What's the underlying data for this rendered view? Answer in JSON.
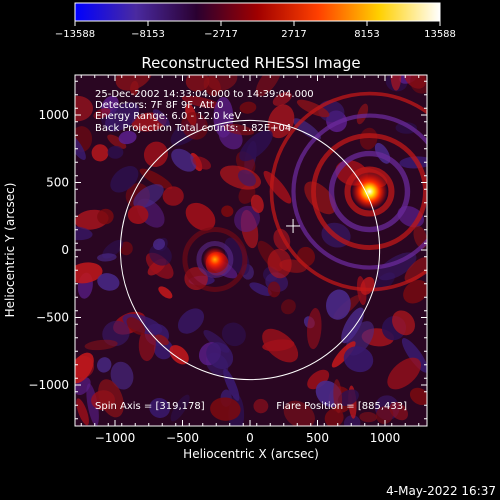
{
  "colorbar": {
    "ticks": [
      "−13588",
      "−8153",
      "−2717",
      "2717",
      "8153",
      "13588"
    ],
    "stops": [
      "#0000ff",
      "#4a2aa0",
      "#2a0030",
      "#a00000",
      "#ff4000",
      "#ffd000",
      "#ffffff"
    ]
  },
  "title": "Reconstructed RHESSI Image",
  "annotations": {
    "line1": "25-Dec-2002 14:33:04.000 to 14:39:04.000",
    "line2": "Detectors: 7F 8F 9F, Att 0",
    "line3": "Energy Range: 6.0 - 12.0 keV",
    "line4": "Back Projection    Total counts: 1.82E+04",
    "spin_axis": "Spin Axis = [319,178]",
    "flare_position": "Flare Position = [885,433]"
  },
  "axes": {
    "xlabel": "Heliocentric X (arcsec)",
    "ylabel": "Heliocentric Y (arcsec)",
    "xticks": [
      {
        "v": -1000,
        "label": "−1000"
      },
      {
        "v": -500,
        "label": "−500"
      },
      {
        "v": 0,
        "label": "0"
      },
      {
        "v": 500,
        "label": "500"
      },
      {
        "v": 1000,
        "label": "1000"
      }
    ],
    "yticks": [
      {
        "v": 1000,
        "label": "1000"
      },
      {
        "v": 500,
        "label": "500"
      },
      {
        "v": 0,
        "label": "0"
      },
      {
        "v": -500,
        "label": "−500"
      },
      {
        "v": -1000,
        "label": "−1000"
      }
    ]
  },
  "features": {
    "spin_axis_marker": [
      319,
      178
    ],
    "sources": [
      {
        "x": 885,
        "y": 433,
        "strength": 1.0
      },
      {
        "x": -260,
        "y": -70,
        "strength": 0.6
      }
    ],
    "solar_limb_radius_arcsec": 960
  },
  "footer": {
    "timestamp": "4-May-2022 16:37"
  }
}
